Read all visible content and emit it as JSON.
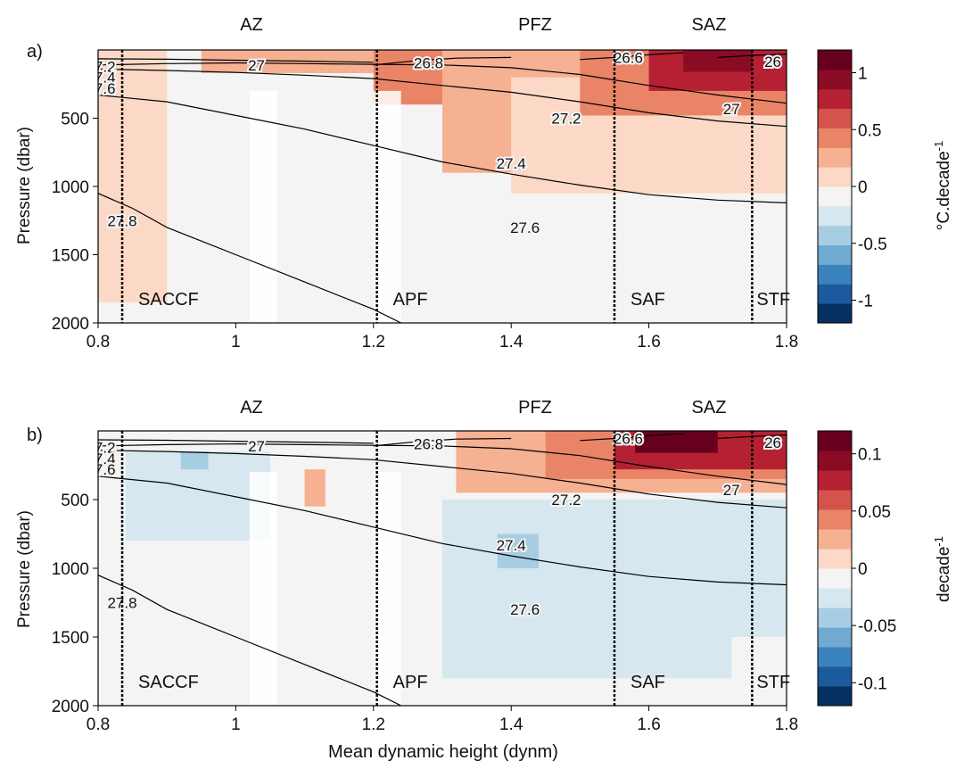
{
  "chart_data": [
    {
      "type": "heatmap",
      "panel_label": "a)",
      "xlabel": "",
      "ylabel": "Pressure (dbar)",
      "xlim": [
        0.8,
        1.8
      ],
      "ylim": [
        2000,
        0
      ],
      "xticks": [
        "0.8",
        "1",
        "1.2",
        "1.4",
        "1.6",
        "1.8"
      ],
      "yticks": [
        "500",
        "1000",
        "1500",
        "2000"
      ],
      "zones": [
        "AZ",
        "PFZ",
        "SAZ"
      ],
      "fronts": [
        {
          "name": "SACCF",
          "x": 0.835
        },
        {
          "name": "APF",
          "x": 1.205
        },
        {
          "name": "SAF",
          "x": 1.55
        },
        {
          "name": "STF",
          "x": 1.75
        }
      ],
      "colorbar": {
        "label": "°C.decade",
        "label_sup": "-1",
        "ticks": [
          "1",
          "0.5",
          "0",
          "-0.5",
          "-1"
        ],
        "tick_values": [
          1,
          0.5,
          0,
          -0.5,
          -1
        ],
        "range": [
          -1.2,
          1.2
        ],
        "colors": [
          "#053061",
          "#1b5a9c",
          "#3b83bd",
          "#70aad1",
          "#a7cde3",
          "#d6e7f0",
          "#f4f4f4",
          "#fbd9c6",
          "#f6b092",
          "#ea8466",
          "#d4534c",
          "#b52132",
          "#8a0b24",
          "#67001f"
        ]
      },
      "contours": [
        {
          "label": "27.2",
          "points": [
            [
              0.8,
              65
            ],
            [
              0.9,
              68
            ],
            [
              1.0,
              75
            ],
            [
              1.1,
              82
            ],
            [
              1.2,
              90
            ]
          ]
        },
        {
          "label": "27",
          "points": [
            [
              0.8,
              110
            ],
            [
              0.9,
              100
            ],
            [
              1.0,
              95
            ],
            [
              1.1,
              100
            ],
            [
              1.2,
              105
            ],
            [
              1.3,
              110
            ],
            [
              1.4,
              130
            ],
            [
              1.5,
              180
            ],
            [
              1.6,
              260
            ],
            [
              1.7,
              330
            ],
            [
              1.8,
              390
            ]
          ]
        },
        {
          "label": "27.4",
          "points": [
            [
              0.8,
              140
            ],
            [
              0.9,
              150
            ],
            [
              1.0,
              165
            ],
            [
              1.1,
              185
            ],
            [
              1.2,
              210
            ],
            [
              1.3,
              260
            ],
            [
              1.4,
              310
            ],
            [
              1.5,
              380
            ],
            [
              1.6,
              460
            ],
            [
              1.7,
              520
            ],
            [
              1.8,
              560
            ]
          ]
        },
        {
          "label": "27.6",
          "points": [
            [
              0.8,
              330
            ],
            [
              0.9,
              380
            ],
            [
              1.0,
              480
            ],
            [
              1.1,
              580
            ],
            [
              1.2,
              700
            ],
            [
              1.3,
              820
            ],
            [
              1.4,
              910
            ],
            [
              1.5,
              990
            ],
            [
              1.6,
              1060
            ],
            [
              1.7,
              1100
            ],
            [
              1.8,
              1120
            ]
          ]
        },
        {
          "label": "27.8",
          "points": [
            [
              0.8,
              1050
            ],
            [
              0.85,
              1160
            ],
            [
              0.9,
              1300
            ],
            [
              1.0,
              1500
            ],
            [
              1.1,
              1700
            ],
            [
              1.2,
              1900
            ],
            [
              1.24,
              2000
            ]
          ]
        },
        {
          "label": "26.8",
          "points": [
            [
              1.2,
              110
            ],
            [
              1.26,
              80
            ],
            [
              1.32,
              60
            ],
            [
              1.4,
              55
            ]
          ]
        },
        {
          "label": "26.6",
          "points": [
            [
              1.5,
              70
            ],
            [
              1.55,
              55
            ],
            [
              1.6,
              35
            ],
            [
              1.65,
              20
            ]
          ]
        },
        {
          "label": "26",
          "points": [
            [
              1.7,
              55
            ],
            [
              1.75,
              40
            ],
            [
              1.8,
              30
            ]
          ]
        }
      ],
      "contour_labels": [
        {
          "text": "27",
          "x": 1.03,
          "y": 110
        },
        {
          "text": "26.8",
          "x": 1.28,
          "y": 95
        },
        {
          "text": "26.6",
          "x": 1.57,
          "y": 55
        },
        {
          "text": "26",
          "x": 1.78,
          "y": 85
        },
        {
          "text": "27.2",
          "x": 1.48,
          "y": 500
        },
        {
          "text": "27",
          "x": 1.72,
          "y": 430
        },
        {
          "text": "27.4",
          "x": 1.4,
          "y": 830
        },
        {
          "text": "27.6",
          "x": 1.42,
          "y": 1300
        },
        {
          "text": "27.8",
          "x": 0.835,
          "y": 1250
        },
        {
          "text": "7.2",
          "x": 0.81,
          "y": 120
        },
        {
          "text": "7.4",
          "x": 0.81,
          "y": 200
        },
        {
          "text": "7.6",
          "x": 0.81,
          "y": 280
        }
      ],
      "patches": [
        {
          "x": [
            0.8,
            0.9
          ],
          "y": [
            0,
            1850
          ],
          "level": 0.15
        },
        {
          "x": [
            0.95,
            1.2
          ],
          "y": [
            0,
            170
          ],
          "level": 0.2
        },
        {
          "x": [
            1.05,
            1.12
          ],
          "y": [
            0,
            50
          ],
          "level": 0.28
        },
        {
          "x": [
            1.2,
            1.8
          ],
          "y": [
            0,
            400
          ],
          "level": 0.35
        },
        {
          "x": [
            1.3,
            1.8
          ],
          "y": [
            0,
            900
          ],
          "level": 0.2
        },
        {
          "x": [
            1.4,
            1.8
          ],
          "y": [
            200,
            1050
          ],
          "level": 0.15
        },
        {
          "x": [
            1.5,
            1.8
          ],
          "y": [
            0,
            480
          ],
          "level": 0.45
        },
        {
          "x": [
            1.6,
            1.8
          ],
          "y": [
            0,
            300
          ],
          "level": 0.75
        },
        {
          "x": [
            1.65,
            1.75
          ],
          "y": [
            0,
            160
          ],
          "level": 1.0
        }
      ]
    },
    {
      "type": "heatmap",
      "panel_label": "b)",
      "xlabel": "Mean dynamic height (dynm)",
      "ylabel": "Pressure (dbar)",
      "xlim": [
        0.8,
        1.8
      ],
      "ylim": [
        2000,
        0
      ],
      "xticks": [
        "0.8",
        "1",
        "1.2",
        "1.4",
        "1.6",
        "1.8"
      ],
      "yticks": [
        "500",
        "1000",
        "1500",
        "2000"
      ],
      "zones": [
        "AZ",
        "PFZ",
        "SAZ"
      ],
      "fronts": [
        {
          "name": "SACCF",
          "x": 0.835
        },
        {
          "name": "APF",
          "x": 1.205
        },
        {
          "name": "SAF",
          "x": 1.55
        },
        {
          "name": "STF",
          "x": 1.75
        }
      ],
      "colorbar": {
        "label": "decade",
        "label_sup": "-1",
        "ticks": [
          "0.1",
          "0.05",
          "0",
          "-0.05",
          "-0.1"
        ],
        "tick_values": [
          0.1,
          0.05,
          0,
          -0.05,
          -0.1
        ],
        "range": [
          -0.12,
          0.12
        ],
        "colors": [
          "#053061",
          "#1b5a9c",
          "#3b83bd",
          "#70aad1",
          "#a7cde3",
          "#d6e7f0",
          "#f4f4f4",
          "#fbd9c6",
          "#f6b092",
          "#ea8466",
          "#d4534c",
          "#b52132",
          "#8a0b24",
          "#67001f"
        ]
      },
      "contours": [
        {
          "label": "27.2",
          "points": [
            [
              0.8,
              65
            ],
            [
              0.9,
              68
            ],
            [
              1.0,
              75
            ],
            [
              1.1,
              82
            ],
            [
              1.2,
              90
            ]
          ]
        },
        {
          "label": "27",
          "points": [
            [
              0.8,
              110
            ],
            [
              0.9,
              100
            ],
            [
              1.0,
              95
            ],
            [
              1.1,
              100
            ],
            [
              1.2,
              105
            ],
            [
              1.3,
              110
            ],
            [
              1.4,
              130
            ],
            [
              1.5,
              180
            ],
            [
              1.6,
              260
            ],
            [
              1.7,
              330
            ],
            [
              1.8,
              390
            ]
          ]
        },
        {
          "label": "27.4",
          "points": [
            [
              0.8,
              140
            ],
            [
              0.9,
              150
            ],
            [
              1.0,
              165
            ],
            [
              1.1,
              185
            ],
            [
              1.2,
              210
            ],
            [
              1.3,
              260
            ],
            [
              1.4,
              310
            ],
            [
              1.5,
              380
            ],
            [
              1.6,
              460
            ],
            [
              1.7,
              520
            ],
            [
              1.8,
              560
            ]
          ]
        },
        {
          "label": "27.6",
          "points": [
            [
              0.8,
              330
            ],
            [
              0.9,
              380
            ],
            [
              1.0,
              480
            ],
            [
              1.1,
              580
            ],
            [
              1.2,
              700
            ],
            [
              1.3,
              820
            ],
            [
              1.4,
              910
            ],
            [
              1.5,
              990
            ],
            [
              1.6,
              1060
            ],
            [
              1.7,
              1100
            ],
            [
              1.8,
              1120
            ]
          ]
        },
        {
          "label": "27.8",
          "points": [
            [
              0.8,
              1050
            ],
            [
              0.85,
              1160
            ],
            [
              0.9,
              1300
            ],
            [
              1.0,
              1500
            ],
            [
              1.1,
              1700
            ],
            [
              1.2,
              1900
            ],
            [
              1.24,
              2000
            ]
          ]
        },
        {
          "label": "26.8",
          "points": [
            [
              1.2,
              110
            ],
            [
              1.26,
              80
            ],
            [
              1.32,
              60
            ],
            [
              1.4,
              55
            ]
          ]
        },
        {
          "label": "26.6",
          "points": [
            [
              1.5,
              70
            ],
            [
              1.55,
              55
            ],
            [
              1.6,
              35
            ],
            [
              1.65,
              20
            ]
          ]
        },
        {
          "label": "26",
          "points": [
            [
              1.7,
              55
            ],
            [
              1.75,
              40
            ],
            [
              1.8,
              30
            ]
          ]
        }
      ],
      "contour_labels": [
        {
          "text": "27",
          "x": 1.03,
          "y": 110
        },
        {
          "text": "26.8",
          "x": 1.28,
          "y": 95
        },
        {
          "text": "26.6",
          "x": 1.57,
          "y": 55
        },
        {
          "text": "26",
          "x": 1.78,
          "y": 85
        },
        {
          "text": "27.2",
          "x": 1.48,
          "y": 500
        },
        {
          "text": "27",
          "x": 1.72,
          "y": 430
        },
        {
          "text": "27.4",
          "x": 1.4,
          "y": 830
        },
        {
          "text": "27.6",
          "x": 1.42,
          "y": 1300
        },
        {
          "text": "27.8",
          "x": 0.835,
          "y": 1250
        },
        {
          "text": "7.2",
          "x": 0.81,
          "y": 120
        },
        {
          "text": "7.4",
          "x": 0.81,
          "y": 200
        },
        {
          "text": "7.6",
          "x": 0.81,
          "y": 280
        }
      ],
      "patches": [
        {
          "x": [
            0.84,
            1.05
          ],
          "y": [
            150,
            800
          ],
          "level": -0.02
        },
        {
          "x": [
            0.92,
            0.96
          ],
          "y": [
            150,
            280
          ],
          "level": -0.045
        },
        {
          "x": [
            1.1,
            1.13
          ],
          "y": [
            280,
            550
          ],
          "level": 0.025
        },
        {
          "x": [
            1.3,
            1.72
          ],
          "y": [
            500,
            1800
          ],
          "level": -0.02
        },
        {
          "x": [
            1.55,
            1.8
          ],
          "y": [
            500,
            1500
          ],
          "level": -0.02
        },
        {
          "x": [
            1.38,
            1.44
          ],
          "y": [
            750,
            1000
          ],
          "level": -0.045
        },
        {
          "x": [
            1.32,
            1.8
          ],
          "y": [
            0,
            450
          ],
          "level": 0.02
        },
        {
          "x": [
            1.45,
            1.8
          ],
          "y": [
            0,
            350
          ],
          "level": 0.045
        },
        {
          "x": [
            1.55,
            1.8
          ],
          "y": [
            0,
            280
          ],
          "level": 0.08
        },
        {
          "x": [
            1.58,
            1.7
          ],
          "y": [
            0,
            160
          ],
          "level": 0.11
        }
      ]
    }
  ]
}
